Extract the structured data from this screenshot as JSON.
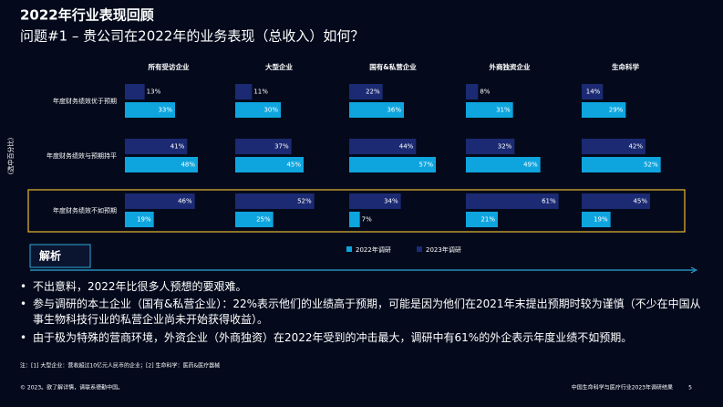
{
  "title": "2022年行业表现回顾",
  "subtitle": "问题#1 – 贵公司在2022年的业务表现（总收入）如何？",
  "chart_data": {
    "type": "bar",
    "orientation": "horizontal",
    "y_label": "(选中百分比)",
    "categories": [
      "年度财务绩效优于预期",
      "年度财务绩效与预期持平",
      "年度财务绩效不如预期"
    ],
    "xlim": [
      0,
      75
    ],
    "series": [
      {
        "name": "2022年调研",
        "color": "#0ea5df"
      },
      {
        "name": "2023年调研",
        "color": "#1b2a72"
      }
    ],
    "panels": [
      {
        "title": "所有受访企业",
        "series": [
          {
            "values": [
              33,
              48,
              19
            ],
            "value_labels": [
              "33%",
              "48%",
              "19%"
            ]
          },
          {
            "values": [
              13,
              41,
              46
            ],
            "value_labels": [
              "13%",
              "41%",
              "46%"
            ]
          }
        ]
      },
      {
        "title": "大型企业",
        "series": [
          {
            "values": [
              30,
              45,
              25
            ],
            "value_labels": [
              "30%",
              "45%",
              "25%"
            ]
          },
          {
            "values": [
              11,
              37,
              52
            ],
            "value_labels": [
              "11%",
              "37%",
              "52%"
            ]
          }
        ]
      },
      {
        "title": "国有&私营企业",
        "series": [
          {
            "values": [
              36,
              57,
              7
            ],
            "value_labels": [
              "36%",
              "57%",
              "7%"
            ]
          },
          {
            "values": [
              22,
              44,
              34
            ],
            "value_labels": [
              "22%",
              "44%",
              "34%"
            ]
          }
        ]
      },
      {
        "title": "外商独资企业",
        "series": [
          {
            "values": [
              31,
              49,
              21
            ],
            "value_labels": [
              "31%",
              "49%",
              "21%"
            ]
          },
          {
            "values": [
              8,
              32,
              61
            ],
            "value_labels": [
              "8%",
              "32%",
              "61%"
            ]
          }
        ]
      },
      {
        "title": "生命科学",
        "series": [
          {
            "values": [
              29,
              52,
              19
            ],
            "value_labels": [
              "29%",
              "52%",
              "19%"
            ]
          },
          {
            "values": [
              14,
              42,
              45
            ],
            "value_labels": [
              "14%",
              "42%",
              "45%"
            ]
          }
        ]
      }
    ]
  },
  "analysis": {
    "heading": "解析",
    "bullets": [
      "不出意料，2022年比很多人预想的要艰难。",
      "参与调研的本土企业（国有&私营企业）：22%表示他们的业绩高于预期，可能是因为他们在2021年末提出预期时较为谨慎（不少在中国从事生物科技行业的私营企业尚未开始获得收益）。",
      "由于极为特殊的营商环境，外资企业（外商独资）在2022年受到的冲击最大，调研中有61%的外企表示年度业绩不如预期。"
    ]
  },
  "note": "注：[1] 大型企业：营收超过10亿元人民币的企业；[2] 生命科学：医药&医疗器械",
  "footer": {
    "left": "© 2023。欲了解详情，请联系德勤中国。",
    "right": "中国生命科学与医疗行业2023年调研结果",
    "page": "5"
  }
}
